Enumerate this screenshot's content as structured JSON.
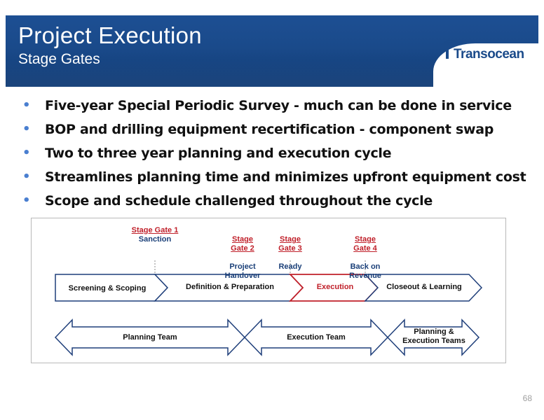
{
  "header": {
    "title": "Project Execution",
    "subtitle": "Stage Gates",
    "logo_text": "Transocean",
    "brand_color": "#1a4a8a"
  },
  "bullets": [
    "Five-year Special Periodic Survey - much can be done in service",
    "BOP and drilling equipment recertification - component swap",
    "Two to three year planning and execution cycle",
    "Streamlines planning time and minimizes upfront equipment cost",
    "Scope and schedule challenged throughout the cycle"
  ],
  "diagram": {
    "gates": [
      {
        "link": "Stage Gate 1",
        "desc": "Sanction"
      },
      {
        "link": "Stage\nGate 2",
        "desc": "Project\nHandover"
      },
      {
        "link": "Stage\nGate 3",
        "desc": "Ready"
      },
      {
        "link": "Stage\nGate 4",
        "desc": "Back on\nRevenue"
      }
    ],
    "phases": [
      "Screening & Scoping",
      "Definition & Preparation",
      "Execution",
      "Closeout & Learning"
    ],
    "teams": [
      "Planning Team",
      "Execution Team",
      "Planning &\nExecution Teams"
    ],
    "highlight_color": "#c0202a",
    "outline_color": "#1f3f7a"
  },
  "page_number": "68"
}
